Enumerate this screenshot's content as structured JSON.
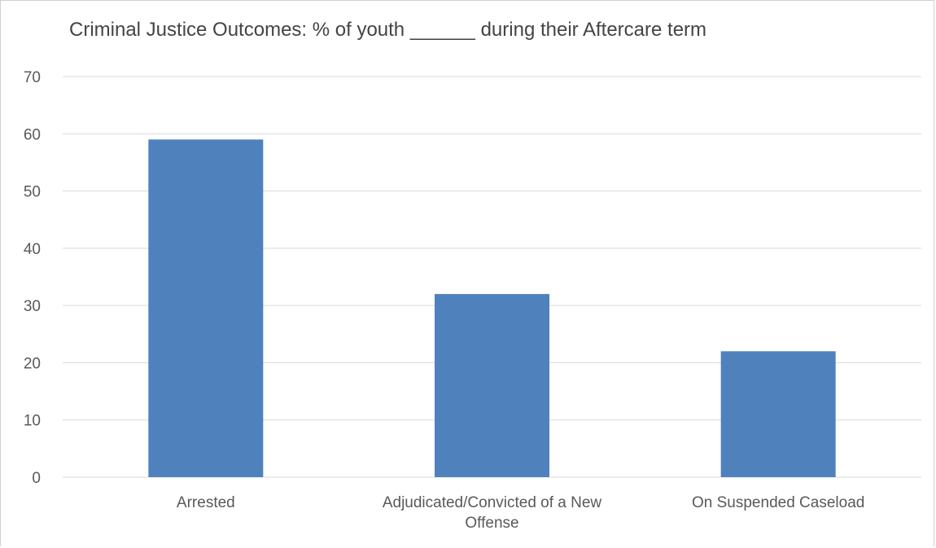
{
  "chart_data": {
    "type": "bar",
    "title": "Criminal Justice Outcomes: % of youth ______ during their Aftercare term",
    "categories": [
      "Arrested",
      "Adjudicated/Convicted of a New Offense",
      "On Suspended Caseload"
    ],
    "category_lines": [
      [
        "Arrested"
      ],
      [
        "Adjudicated/Convicted of a New",
        "Offense"
      ],
      [
        "On Suspended Caseload"
      ]
    ],
    "values": [
      59,
      32,
      22
    ],
    "ylim": [
      0,
      70
    ],
    "yticks": [
      0,
      10,
      20,
      30,
      40,
      50,
      60,
      70
    ],
    "ytick_labels": [
      "0",
      "10",
      "20",
      "30",
      "40",
      "50",
      "60",
      "70"
    ],
    "grid": true,
    "bar_color": "#4F81BD",
    "grid_color": "#D9D9D9",
    "text_color": "#595959"
  }
}
